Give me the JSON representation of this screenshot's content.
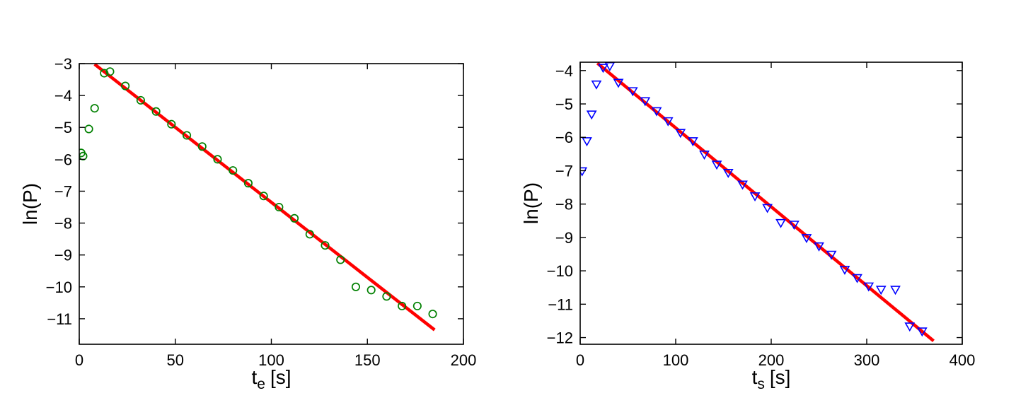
{
  "figure": {
    "background": "#ffffff",
    "axis_color": "#000000",
    "text_color": "#000000"
  },
  "chart_data": [
    {
      "type": "scatter",
      "title": "",
      "xlabel": {
        "base": "t",
        "sub": "e",
        "unit": "[s]"
      },
      "ylabel": "ln(P)",
      "xlim": [
        0,
        200
      ],
      "ylim": [
        -11.8,
        -3
      ],
      "xticks": [
        0,
        50,
        100,
        150,
        200
      ],
      "yticks": [
        -3,
        -4,
        -5,
        -6,
        -7,
        -8,
        -9,
        -10,
        -11
      ],
      "grid": false,
      "legend": "none",
      "series": [
        {
          "name": "exponential-fit-line",
          "kind": "line",
          "color": "#ff0000",
          "line_width": 4.5,
          "points": [
            [
              8,
              -3.02
            ],
            [
              185,
              -11.35
            ]
          ]
        },
        {
          "name": "measured-data",
          "kind": "markers",
          "marker": "circle-open",
          "color": "#008000",
          "points": [
            [
              1,
              -5.8
            ],
            [
              2,
              -5.9
            ],
            [
              5,
              -5.05
            ],
            [
              8,
              -4.4
            ],
            [
              13,
              -3.3
            ],
            [
              16,
              -3.25
            ],
            [
              24,
              -3.7
            ],
            [
              32,
              -4.15
            ],
            [
              40,
              -4.5
            ],
            [
              48,
              -4.9
            ],
            [
              56,
              -5.25
            ],
            [
              64,
              -5.6
            ],
            [
              72,
              -6.0
            ],
            [
              80,
              -6.35
            ],
            [
              88,
              -6.75
            ],
            [
              96,
              -7.15
            ],
            [
              104,
              -7.5
            ],
            [
              112,
              -7.85
            ],
            [
              120,
              -8.35
            ],
            [
              128,
              -8.7
            ],
            [
              136,
              -9.15
            ],
            [
              144,
              -10.0
            ],
            [
              152,
              -10.1
            ],
            [
              160,
              -10.3
            ],
            [
              168,
              -10.6
            ],
            [
              176,
              -10.6
            ],
            [
              184,
              -10.85
            ]
          ]
        }
      ]
    },
    {
      "type": "scatter",
      "title": "",
      "xlabel": {
        "base": "t",
        "sub": "s",
        "unit": "[s]"
      },
      "ylabel": "ln(P)",
      "xlim": [
        0,
        400
      ],
      "ylim": [
        -12.2,
        -3.75
      ],
      "xticks": [
        0,
        100,
        200,
        300,
        400
      ],
      "yticks": [
        -4,
        -5,
        -6,
        -7,
        -8,
        -9,
        -10,
        -11,
        -12
      ],
      "grid": false,
      "legend": "none",
      "series": [
        {
          "name": "exponential-fit-line",
          "kind": "line",
          "color": "#ff0000",
          "line_width": 4.5,
          "points": [
            [
              18,
              -3.78
            ],
            [
              370,
              -12.1
            ]
          ]
        },
        {
          "name": "measured-data",
          "kind": "markers",
          "marker": "triangle-down-open",
          "color": "#0000ff",
          "points": [
            [
              2,
              -7.0
            ],
            [
              7,
              -6.1
            ],
            [
              12,
              -5.3
            ],
            [
              17,
              -4.4
            ],
            [
              24,
              -3.9
            ],
            [
              31,
              -3.85
            ],
            [
              40,
              -4.35
            ],
            [
              55,
              -4.6
            ],
            [
              68,
              -4.9
            ],
            [
              80,
              -5.2
            ],
            [
              92,
              -5.5
            ],
            [
              105,
              -5.85
            ],
            [
              118,
              -6.1
            ],
            [
              130,
              -6.5
            ],
            [
              143,
              -6.8
            ],
            [
              155,
              -7.05
            ],
            [
              170,
              -7.4
            ],
            [
              183,
              -7.75
            ],
            [
              196,
              -8.1
            ],
            [
              210,
              -8.55
            ],
            [
              224,
              -8.6
            ],
            [
              237,
              -9.0
            ],
            [
              250,
              -9.25
            ],
            [
              263,
              -9.5
            ],
            [
              277,
              -9.95
            ],
            [
              290,
              -10.2
            ],
            [
              302,
              -10.45
            ],
            [
              315,
              -10.55
            ],
            [
              330,
              -10.55
            ],
            [
              345,
              -11.65
            ],
            [
              358,
              -11.8
            ]
          ]
        }
      ]
    }
  ]
}
